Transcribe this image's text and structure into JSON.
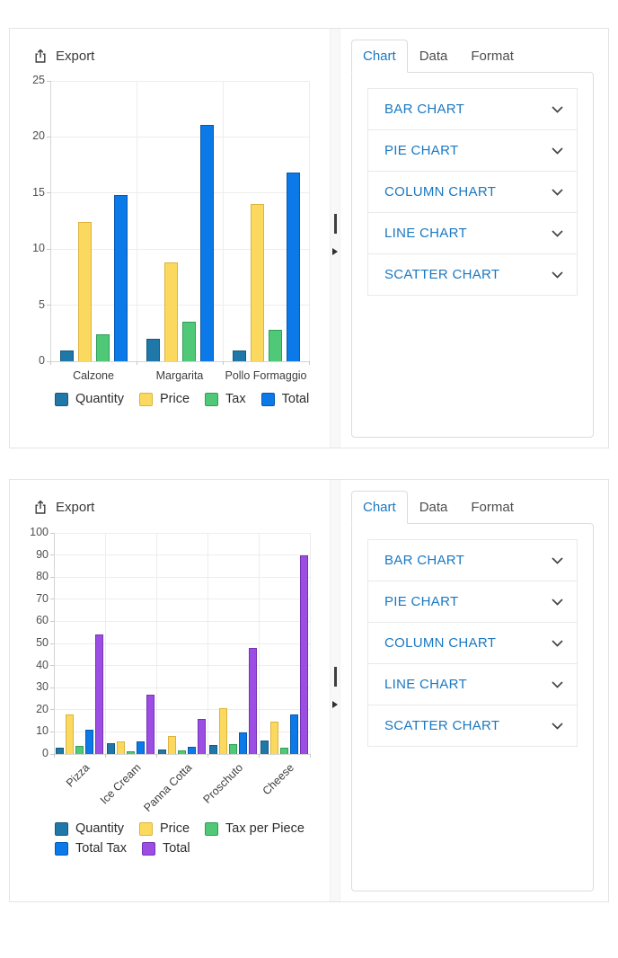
{
  "ui_colors": {
    "accent_blue": "#1a78c2",
    "tab_inactive_text": "#4e4e4e",
    "export_text": "#3a3a3a",
    "card_border": "#e4e4e4"
  },
  "icons": {
    "export_icon": "box-with-arrow-up",
    "chevron_down_icon": "v",
    "drag_handle_icon": "vertical-bar",
    "collapse_arrow_icon": "right-pointing-triangle"
  },
  "cards": [
    {
      "export_label": "Export",
      "tabs": [
        {
          "label": "Chart",
          "active": true
        },
        {
          "label": "Data",
          "active": false
        },
        {
          "label": "Format",
          "active": false
        }
      ],
      "chart_types": [
        "BAR CHART",
        "PIE CHART",
        "COLUMN CHART",
        "LINE CHART",
        "SCATTER CHART"
      ],
      "chart_data": {
        "type": "bar",
        "categories": [
          "Calzone",
          "Margarita",
          "Pollo Formaggio"
        ],
        "series": [
          {
            "name": "Quantity",
            "color": "#1f78a8",
            "stroke": "#15597f",
            "values": [
              1,
              2,
              1
            ]
          },
          {
            "name": "Price",
            "color": "#fbd95f",
            "stroke": "#dbb33e",
            "values": [
              12.4,
              8.8,
              14
            ]
          },
          {
            "name": "Tax",
            "color": "#4fc878",
            "stroke": "#2f9e56",
            "values": [
              2.4,
              3.5,
              2.8
            ]
          },
          {
            "name": "Total",
            "color": "#0b79e8",
            "stroke": "#0758ad",
            "values": [
              14.8,
              21.1,
              16.8
            ]
          }
        ],
        "ylim": [
          0,
          25
        ],
        "ytick_interval": 5,
        "grid": true,
        "legend_position": "bottom"
      }
    },
    {
      "export_label": "Export",
      "tabs": [
        {
          "label": "Chart",
          "active": true
        },
        {
          "label": "Data",
          "active": false
        },
        {
          "label": "Format",
          "active": false
        }
      ],
      "chart_types": [
        "BAR CHART",
        "PIE CHART",
        "COLUMN CHART",
        "LINE CHART",
        "SCATTER CHART"
      ],
      "chart_data": {
        "type": "bar",
        "categories": [
          "Pizza",
          "Ice Cream",
          "Panna Cotta",
          "Proschuto",
          "Cheese"
        ],
        "series": [
          {
            "name": "Quantity",
            "color": "#1f78a8",
            "stroke": "#15597f",
            "values": [
              3,
              5,
              2,
              4,
              6
            ]
          },
          {
            "name": "Price",
            "color": "#fbd95f",
            "stroke": "#dbb33e",
            "values": [
              18,
              5.5,
              8,
              20.8,
              14.8
            ]
          },
          {
            "name": "Tax per Piece",
            "color": "#4fc878",
            "stroke": "#2f9e56",
            "values": [
              3.6,
              1.2,
              1.6,
              4.5,
              3
            ]
          },
          {
            "name": "Total Tax",
            "color": "#0b79e8",
            "stroke": "#0758ad",
            "values": [
              10.8,
              5.7,
              3.2,
              9.6,
              18
            ]
          },
          {
            "name": "Total",
            "color": "#9c4ee4",
            "stroke": "#7433b4",
            "values": [
              54,
              27,
              16,
              48,
              90
            ]
          }
        ],
        "ylim": [
          0,
          100
        ],
        "ytick_interval": 10,
        "grid": true,
        "legend_position": "bottom",
        "x_label_rotation": -45
      }
    }
  ]
}
